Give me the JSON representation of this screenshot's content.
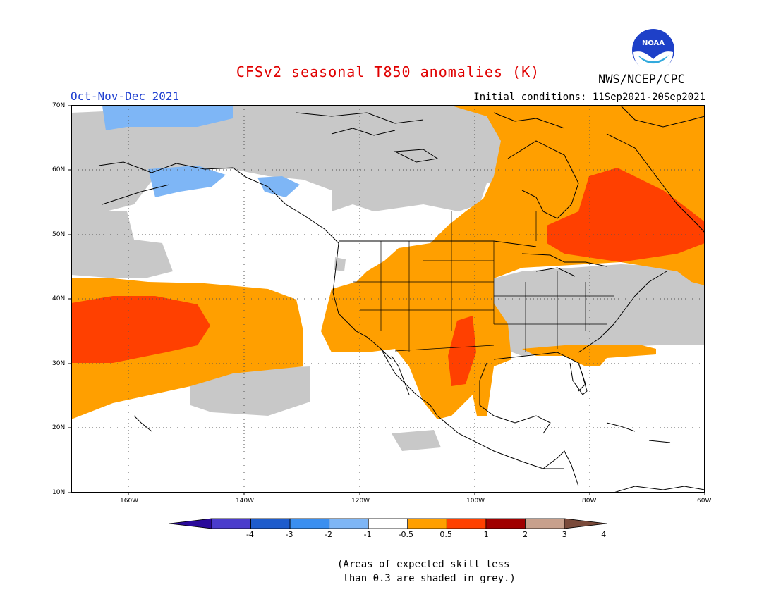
{
  "title": "CFSv2 seasonal T850 anomalies (K)",
  "season": "Oct-Nov-Dec 2021",
  "initial_conditions": "Initial conditions: 11Sep2021-20Sep2021",
  "agency": "NWS/NCEP/CPC",
  "logo_text": "NOAA",
  "footnote": {
    "line1": "(Areas of expected skill less",
    "line2": " than 0.3 are shaded in grey.)"
  },
  "axes": {
    "lat_labels": [
      "70N",
      "60N",
      "50N",
      "40N",
      "30N",
      "20N",
      "10N"
    ],
    "lon_labels": [
      "160W",
      "140W",
      "120W",
      "100W",
      "80W",
      "60W"
    ]
  },
  "colorbar": {
    "colors": [
      "#2a0a9a",
      "#4a3ccc",
      "#1e5ccc",
      "#3a8ff0",
      "#7eb6f6",
      "#ffffff",
      "#ff9f00",
      "#ff4000",
      "#a00000",
      "#c8a08c",
      "#7a4a3a"
    ],
    "labels": [
      "-4",
      "-3",
      "-2",
      "-1",
      "-0.5",
      "0.5",
      "1",
      "2",
      "3",
      "4"
    ]
  },
  "legend_colors": {
    "warm_1": "#ff9f00",
    "warm_2": "#ff4000",
    "cool_1": "#7eb6f6",
    "low_skill_grey": "#c8c8c8"
  }
}
